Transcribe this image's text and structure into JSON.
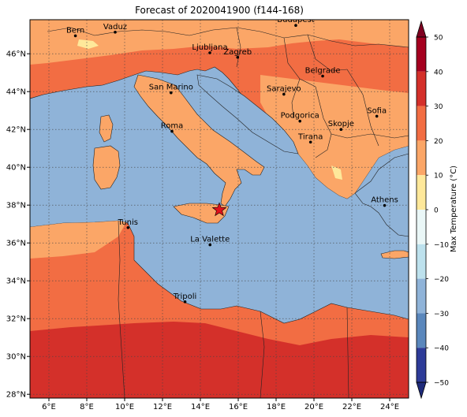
{
  "title": "Forecast of 2020041900 (f144-168)",
  "map": {
    "lon_range": [
      5,
      25
    ],
    "lat_range": [
      27.8,
      47.8
    ],
    "lon_ticks": [
      6,
      8,
      10,
      12,
      14,
      16,
      18,
      20,
      22,
      24
    ],
    "lat_ticks": [
      28,
      30,
      32,
      34,
      36,
      38,
      40,
      42,
      44,
      46
    ],
    "lon_tick_labels": [
      "6°E",
      "8°E",
      "10°E",
      "12°E",
      "14°E",
      "16°E",
      "18°E",
      "20°E",
      "22°E",
      "24°E"
    ],
    "lat_tick_labels": [
      "28°N",
      "30°N",
      "32°N",
      "34°N",
      "36°N",
      "38°N",
      "40°N",
      "42°N",
      "44°N",
      "46°N"
    ],
    "gridlines": true,
    "sea_color": "#8fb3d8"
  },
  "cities": [
    {
      "name": "Bern",
      "lon": 7.4,
      "lat": 46.95
    },
    {
      "name": "Vaduz",
      "lon": 9.5,
      "lat": 47.14
    },
    {
      "name": "Budapest",
      "lon": 19.04,
      "lat": 47.5
    },
    {
      "name": "Ljubljana",
      "lon": 14.5,
      "lat": 46.05
    },
    {
      "name": "Zagreb",
      "lon": 15.97,
      "lat": 45.81
    },
    {
      "name": "Belgrade",
      "lon": 20.46,
      "lat": 44.82
    },
    {
      "name": "San Marino",
      "lon": 12.45,
      "lat": 43.94
    },
    {
      "name": "Sarajevo",
      "lon": 18.41,
      "lat": 43.86
    },
    {
      "name": "Sofia",
      "lon": 23.32,
      "lat": 42.7
    },
    {
      "name": "Podgorica",
      "lon": 19.26,
      "lat": 42.44
    },
    {
      "name": "Skopje",
      "lon": 21.43,
      "lat": 42.0
    },
    {
      "name": "Roma",
      "lon": 12.5,
      "lat": 41.9
    },
    {
      "name": "Tirana",
      "lon": 19.82,
      "lat": 41.33
    },
    {
      "name": "Athens",
      "lon": 23.73,
      "lat": 37.98
    },
    {
      "name": "Tunis",
      "lon": 10.18,
      "lat": 36.81
    },
    {
      "name": "La Valette",
      "lon": 14.51,
      "lat": 35.9
    },
    {
      "name": "Tripoli",
      "lon": 13.19,
      "lat": 32.89
    }
  ],
  "marker": {
    "lon": 15.0,
    "lat": 37.75,
    "symbol": "star",
    "color": "#e0101a"
  },
  "colorbar": {
    "label": "Max Temperature (°C)",
    "min": -50,
    "max": 50,
    "ticks": [
      50,
      40,
      30,
      20,
      10,
      0,
      -10,
      -20,
      -30,
      -40,
      -50
    ],
    "bins": [
      {
        "from": 40,
        "to": 50,
        "color": "#a5001f"
      },
      {
        "from": 30,
        "to": 40,
        "color": "#d4302a"
      },
      {
        "from": 20,
        "to": 30,
        "color": "#f26d43"
      },
      {
        "from": 10,
        "to": 20,
        "color": "#fba667"
      },
      {
        "from": 0,
        "to": 10,
        "color": "#fee89a"
      },
      {
        "from": -10,
        "to": 0,
        "color": "#eaf7f7"
      },
      {
        "from": -20,
        "to": -10,
        "color": "#bde1ed"
      },
      {
        "from": -30,
        "to": -20,
        "color": "#8fb3d8"
      },
      {
        "from": -40,
        "to": -30,
        "color": "#5a87bc"
      },
      {
        "from": -50,
        "to": -40,
        "color": "#2d3b98"
      }
    ],
    "extend_low_color": "#1e2a7a",
    "extend_high_color": "#7f0020"
  }
}
